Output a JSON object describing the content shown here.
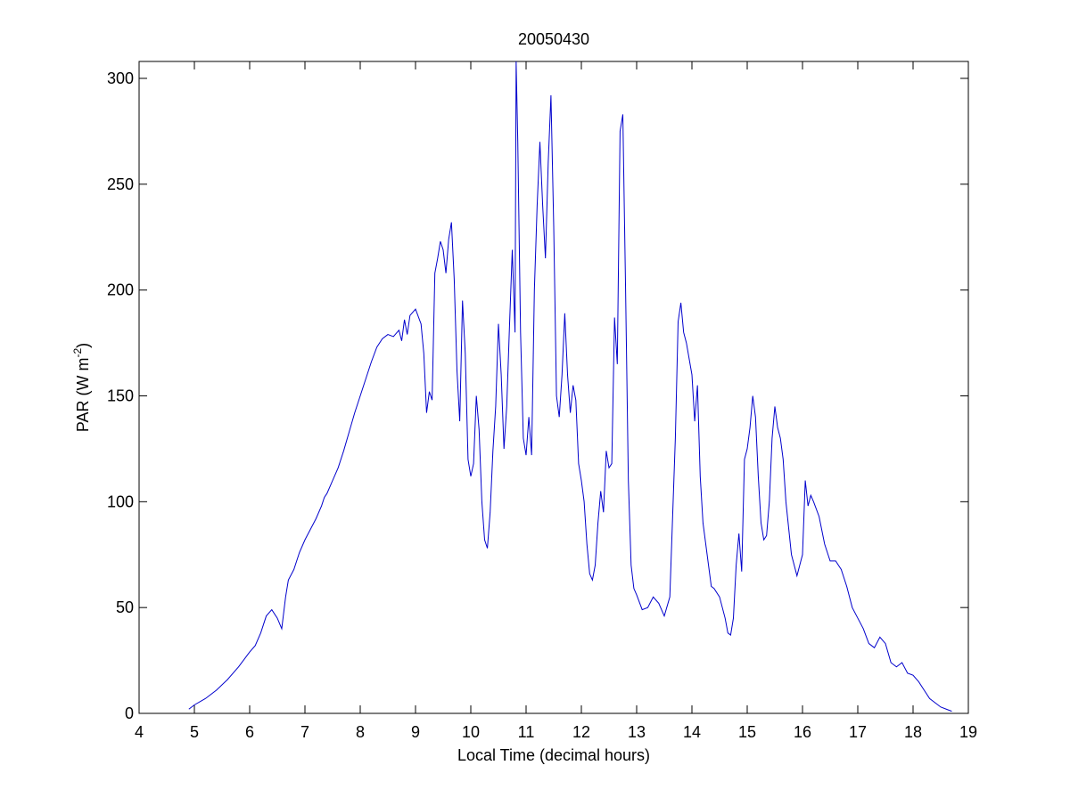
{
  "chart_data": {
    "type": "line",
    "title": "20050430",
    "xlabel": "Local Time (decimal hours)",
    "ylabel": {
      "text": "PAR (W m",
      "superscript": "-2",
      "suffix": ")"
    },
    "xlim": [
      4,
      19
    ],
    "xticks": [
      4,
      5,
      6,
      7,
      8,
      9,
      10,
      11,
      12,
      13,
      14,
      15,
      16,
      17,
      18,
      19
    ],
    "ylim": [
      0,
      308
    ],
    "yticks": [
      0,
      50,
      100,
      150,
      200,
      250,
      300
    ],
    "grid": false,
    "series": [
      {
        "color": "#0000cc",
        "x": [
          4.9,
          5.0,
          5.2,
          5.4,
          5.6,
          5.8,
          6.0,
          6.1,
          6.2,
          6.3,
          6.4,
          6.5,
          6.58,
          6.65,
          6.7,
          6.8,
          6.9,
          7.0,
          7.1,
          7.2,
          7.3,
          7.35,
          7.4,
          7.5,
          7.6,
          7.7,
          7.8,
          7.9,
          8.0,
          8.1,
          8.2,
          8.3,
          8.4,
          8.5,
          8.6,
          8.7,
          8.75,
          8.8,
          8.85,
          8.9,
          9.0,
          9.1,
          9.15,
          9.2,
          9.25,
          9.3,
          9.35,
          9.4,
          9.45,
          9.5,
          9.55,
          9.6,
          9.65,
          9.7,
          9.75,
          9.8,
          9.85,
          9.9,
          9.95,
          10.0,
          10.05,
          10.1,
          10.15,
          10.2,
          10.25,
          10.3,
          10.35,
          10.4,
          10.45,
          10.5,
          10.55,
          10.6,
          10.65,
          10.7,
          10.75,
          10.8,
          10.82,
          10.85,
          10.9,
          10.95,
          11.0,
          11.05,
          11.1,
          11.15,
          11.2,
          11.25,
          11.3,
          11.35,
          11.4,
          11.45,
          11.5,
          11.55,
          11.6,
          11.65,
          11.7,
          11.75,
          11.8,
          11.85,
          11.9,
          11.95,
          12.0,
          12.05,
          12.1,
          12.15,
          12.2,
          12.25,
          12.3,
          12.35,
          12.4,
          12.45,
          12.5,
          12.55,
          12.6,
          12.65,
          12.7,
          12.75,
          12.8,
          12.85,
          12.9,
          12.95,
          13.0,
          13.1,
          13.2,
          13.3,
          13.4,
          13.5,
          13.6,
          13.7,
          13.75,
          13.8,
          13.85,
          13.9,
          14.0,
          14.05,
          14.1,
          14.15,
          14.2,
          14.3,
          14.35,
          14.4,
          14.5,
          14.6,
          14.65,
          14.7,
          14.75,
          14.8,
          14.85,
          14.9,
          14.95,
          15.0,
          15.05,
          15.1,
          15.15,
          15.2,
          15.25,
          15.3,
          15.35,
          15.4,
          15.45,
          15.5,
          15.55,
          15.6,
          15.65,
          15.7,
          15.8,
          15.9,
          16.0,
          16.05,
          16.1,
          16.15,
          16.2,
          16.3,
          16.4,
          16.5,
          16.6,
          16.7,
          16.8,
          16.9,
          17.0,
          17.1,
          17.2,
          17.3,
          17.4,
          17.5,
          17.6,
          17.7,
          17.8,
          17.9,
          18.0,
          18.1,
          18.2,
          18.3,
          18.4,
          18.5,
          18.6,
          18.7
        ],
        "values": [
          2,
          4,
          7,
          11,
          16,
          22,
          29,
          32,
          38,
          46,
          49,
          45,
          40,
          55,
          63,
          68,
          76,
          82,
          87,
          92,
          98,
          102,
          104,
          110,
          116,
          124,
          133,
          142,
          150,
          158,
          166,
          173,
          177,
          179,
          178,
          181,
          176,
          186,
          179,
          188,
          191,
          184,
          170,
          142,
          152,
          148,
          208,
          215,
          223,
          219,
          208,
          224,
          232,
          205,
          162,
          138,
          195,
          170,
          120,
          112,
          118,
          150,
          134,
          100,
          82,
          78,
          95,
          124,
          145,
          184,
          160,
          125,
          145,
          183,
          219,
          180,
          308,
          270,
          180,
          130,
          122,
          140,
          122,
          200,
          240,
          270,
          240,
          215,
          260,
          292,
          230,
          150,
          140,
          160,
          189,
          160,
          142,
          155,
          148,
          118,
          110,
          100,
          80,
          66,
          63,
          70,
          90,
          105,
          95,
          124,
          116,
          118,
          187,
          165,
          275,
          283,
          200,
          110,
          70,
          59,
          56,
          49,
          50,
          55,
          52,
          46,
          55,
          130,
          185,
          194,
          180,
          175,
          160,
          138,
          155,
          112,
          90,
          70,
          60,
          59,
          55,
          45,
          38,
          37,
          45,
          70,
          85,
          67,
          120,
          125,
          135,
          150,
          140,
          112,
          90,
          82,
          84,
          100,
          130,
          145,
          135,
          130,
          120,
          100,
          75,
          65,
          75,
          110,
          98,
          103,
          100,
          93,
          80,
          72,
          72,
          68,
          60,
          50,
          45,
          40,
          33,
          31,
          36,
          33,
          24,
          22,
          24,
          19,
          18,
          15,
          11,
          7,
          5,
          3,
          2,
          1
        ]
      }
    ]
  }
}
